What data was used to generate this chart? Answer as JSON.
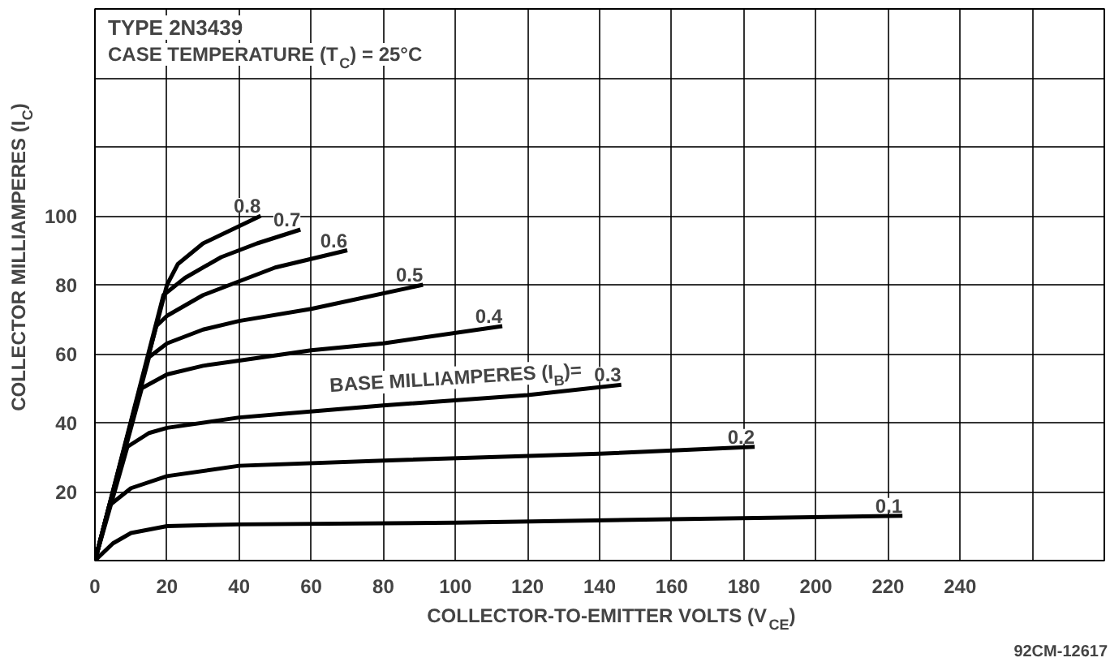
{
  "chart_data": {
    "type": "line",
    "title": "TYPE 2N3439",
    "subtitle": "CASE TEMPERATURE (T$_{C}$) = 25°C",
    "xlabel": "COLLECTOR-TO-EMITTER VOLTS (V$_{CE}$)",
    "ylabel": "COLLECTOR MILLIAMPERES (I$_{C}$)",
    "xlim": [
      0,
      280
    ],
    "ylim": [
      0,
      160
    ],
    "xticks": [
      0,
      20,
      40,
      60,
      80,
      100,
      120,
      140,
      160,
      180,
      200,
      220,
      240,
      {
        "value": 260,
        "label": null
      }
    ],
    "yticks": [
      {
        "value": 0,
        "label": null
      },
      20,
      40,
      60,
      80,
      100,
      {
        "value": 120,
        "label": null
      },
      {
        "value": 140,
        "label": null
      }
    ],
    "grid": true,
    "legend": false,
    "marker": "none",
    "line_style": "solid",
    "series": [
      {
        "name": "0.1",
        "color": "#000000",
        "x": [
          0,
          5,
          10,
          20,
          40,
          100,
          160,
          224
        ],
        "values": [
          0,
          5,
          8,
          10,
          10.5,
          11,
          12,
          13
        ]
      },
      {
        "name": "0.2",
        "color": "#000000",
        "x": [
          0,
          4,
          10,
          20,
          40,
          80,
          140,
          183
        ],
        "values": [
          0,
          16,
          21,
          24.5,
          27.5,
          29,
          31,
          33
        ]
      },
      {
        "name": "0.3",
        "color": "#000000",
        "x": [
          0,
          9,
          15,
          20,
          40,
          80,
          120,
          146
        ],
        "values": [
          0,
          33,
          37,
          38.5,
          41.5,
          45,
          48,
          51
        ]
      },
      {
        "name": "0.4",
        "color": "#000000",
        "x": [
          0,
          13,
          20,
          30,
          40,
          60,
          80,
          113
        ],
        "values": [
          0,
          50,
          54,
          56.5,
          58,
          61,
          63,
          68
        ]
      },
      {
        "name": "0.5",
        "color": "#000000",
        "x": [
          0,
          15,
          20,
          30,
          40,
          60,
          91
        ],
        "values": [
          0,
          59,
          63,
          67,
          69.5,
          73,
          80
        ]
      },
      {
        "name": "0.6",
        "color": "#000000",
        "x": [
          0,
          17,
          20,
          30,
          40,
          50,
          70
        ],
        "values": [
          0,
          68,
          71,
          77,
          81,
          85,
          90
        ]
      },
      {
        "name": "0.7",
        "color": "#000000",
        "x": [
          0,
          19,
          25,
          35,
          45,
          57
        ],
        "values": [
          0,
          77,
          82,
          88,
          92,
          96
        ]
      },
      {
        "name": "0.8",
        "color": "#000000",
        "x": [
          0,
          20,
          23,
          30,
          40,
          46
        ],
        "values": [
          0,
          80,
          86,
          92,
          97,
          100
        ]
      }
    ],
    "annotations": [
      {
        "text": "BASE MILLIAMPERES (I$_{B}$)=",
        "x": 146,
        "y": 51
      },
      "92CM-12617"
    ]
  }
}
